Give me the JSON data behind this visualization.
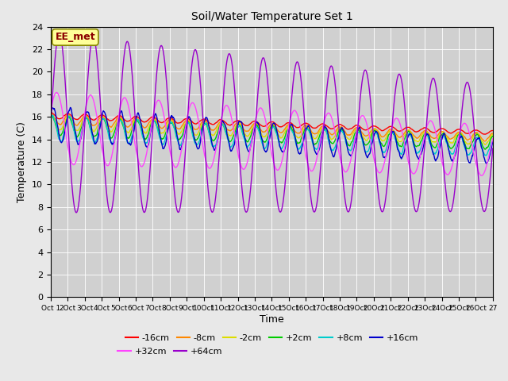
{
  "title": "Soil/Water Temperature Set 1",
  "xlabel": "Time",
  "ylabel": "Temperature (C)",
  "ylim": [
    0,
    24
  ],
  "xlim": [
    0,
    26
  ],
  "x_tick_labels": [
    "Oct 1",
    "2Oct",
    "3Oct",
    "4Oct",
    "5Oct",
    "6Oct",
    "7Oct",
    "8Oct",
    "9Oct",
    "10Oct",
    "11Oct",
    "12Oct",
    "13Oct",
    "14Oct",
    "15Oct",
    "16Oct",
    "17Oct",
    "18Oct",
    "19Oct",
    "20Oct",
    "21Oct",
    "22Oct",
    "23Oct",
    "24Oct",
    "25Oct",
    "26Oct",
    "27"
  ],
  "fig_bg": "#e8e8e8",
  "plot_bg": "#d0d0d0",
  "annotation_text": "EE_met",
  "annotation_bg": "#ffff99",
  "annotation_border": "#8b0000",
  "series": [
    {
      "label": "-16cm",
      "color": "#ff0000",
      "amp": 0.25,
      "base_start": 16.1,
      "base_end": 14.6,
      "period": 1.0,
      "phase": 1.5
    },
    {
      "label": "-8cm",
      "color": "#ff8800",
      "amp": 0.45,
      "base_start": 15.8,
      "base_end": 14.2,
      "period": 1.0,
      "phase": 1.4
    },
    {
      "label": "-2cm",
      "color": "#dddd00",
      "amp": 0.65,
      "base_start": 15.5,
      "base_end": 14.0,
      "period": 1.0,
      "phase": 1.3
    },
    {
      "label": "+2cm",
      "color": "#00cc00",
      "amp": 0.85,
      "base_start": 15.2,
      "base_end": 13.7,
      "period": 1.0,
      "phase": 1.2
    },
    {
      "label": "+8cm",
      "color": "#00cccc",
      "amp": 1.1,
      "base_start": 15.0,
      "base_end": 13.3,
      "period": 1.0,
      "phase": 1.0
    },
    {
      "label": "+16cm",
      "color": "#0000cc",
      "amp": 1.5,
      "base_start": 15.3,
      "base_end": 13.0,
      "period": 1.0,
      "phase": 0.7
    },
    {
      "label": "+32cm",
      "color": "#ff44ff",
      "amp": 3.2,
      "base_start": 15.0,
      "base_end": 13.0,
      "period": 2.0,
      "phase": 0.5
    },
    {
      "label": "+64cm",
      "color": "#9900cc",
      "amp": 8.0,
      "base_start": 15.5,
      "base_end": 13.2,
      "period": 2.0,
      "phase": 0.0
    }
  ],
  "grid_color": "#ffffff",
  "linewidth": 1.0,
  "legend_ncol_row1": 6,
  "legend_ncol_row2": 2
}
